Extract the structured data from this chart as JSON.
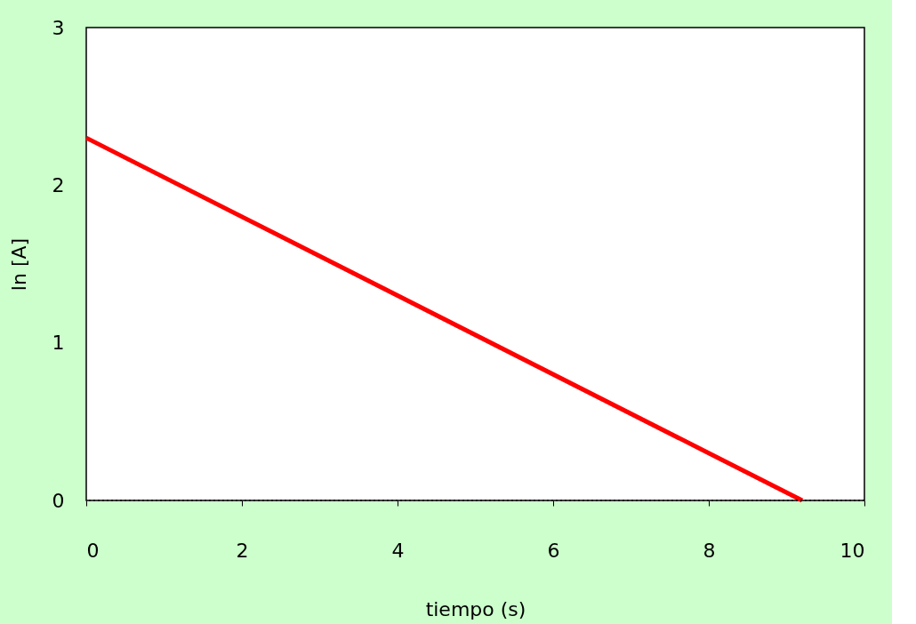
{
  "chart_data": {
    "type": "line",
    "xlabel": "tiempo (s)",
    "ylabel": "ln [A]",
    "x": [
      0,
      9.2
    ],
    "series": [
      {
        "color": "#ff0000",
        "values": [
          2.3,
          0
        ]
      }
    ],
    "xlim": [
      0,
      10
    ],
    "xticks": [
      0,
      2,
      4,
      6,
      8,
      10
    ],
    "ylim": [
      0,
      3
    ],
    "yticks": [
      0,
      1,
      2,
      3
    ],
    "ref_lines": [
      {
        "axis": "y",
        "value": 0,
        "line_style": "dotted",
        "color": "#000000"
      }
    ],
    "grid": false,
    "marker": "none",
    "line_style": "solid"
  }
}
